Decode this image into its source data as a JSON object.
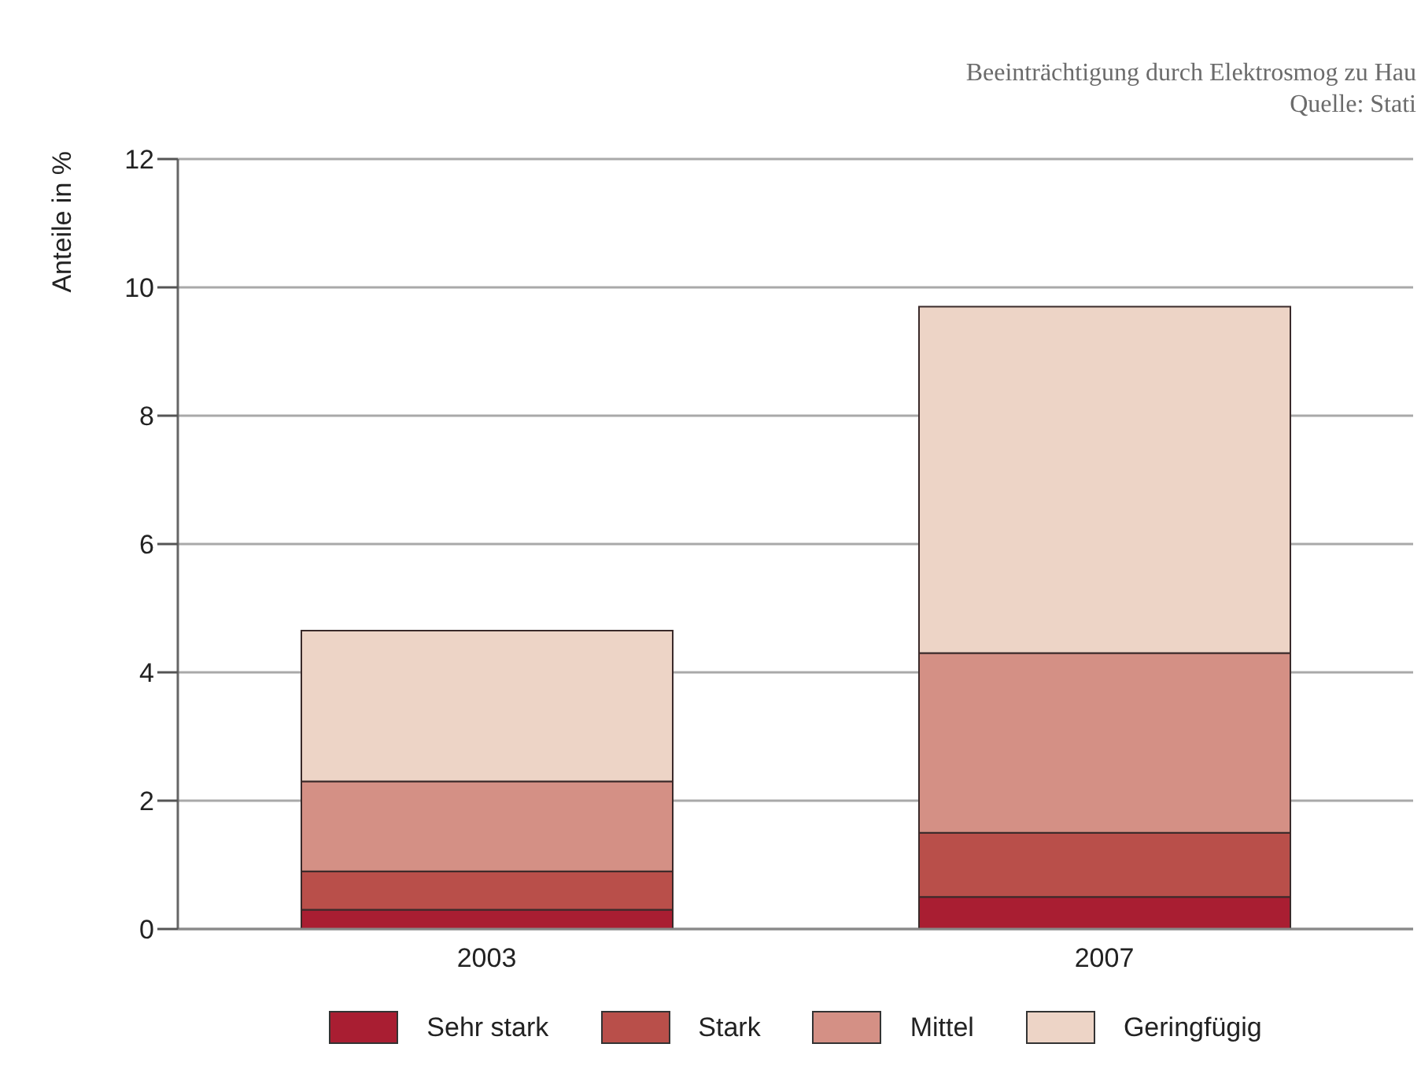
{
  "chart_data": {
    "type": "bar",
    "title": "Beeinträchtigung durch Elektrosmog zu Hau",
    "annotations": [
      "Quelle: Stati"
    ],
    "ylabel": "Anteile in %",
    "categories": [
      "2003",
      "2007"
    ],
    "stacked": true,
    "series": [
      {
        "name": "Sehr stark",
        "color": "#a91e32",
        "values": [
          0.3,
          0.5
        ]
      },
      {
        "name": "Stark",
        "color": "#b94f4a",
        "values": [
          0.6,
          1.0
        ]
      },
      {
        "name": "Mittel",
        "color": "#d49085",
        "values": [
          1.4,
          2.8
        ]
      },
      {
        "name": "Geringfügig",
        "color": "#edd4c6",
        "values": [
          2.35,
          5.4
        ]
      }
    ],
    "ylim": [
      0,
      12
    ],
    "yticks": [
      0,
      2,
      4,
      6,
      8,
      10,
      12
    ],
    "grid": "y",
    "legend": "bottom"
  }
}
